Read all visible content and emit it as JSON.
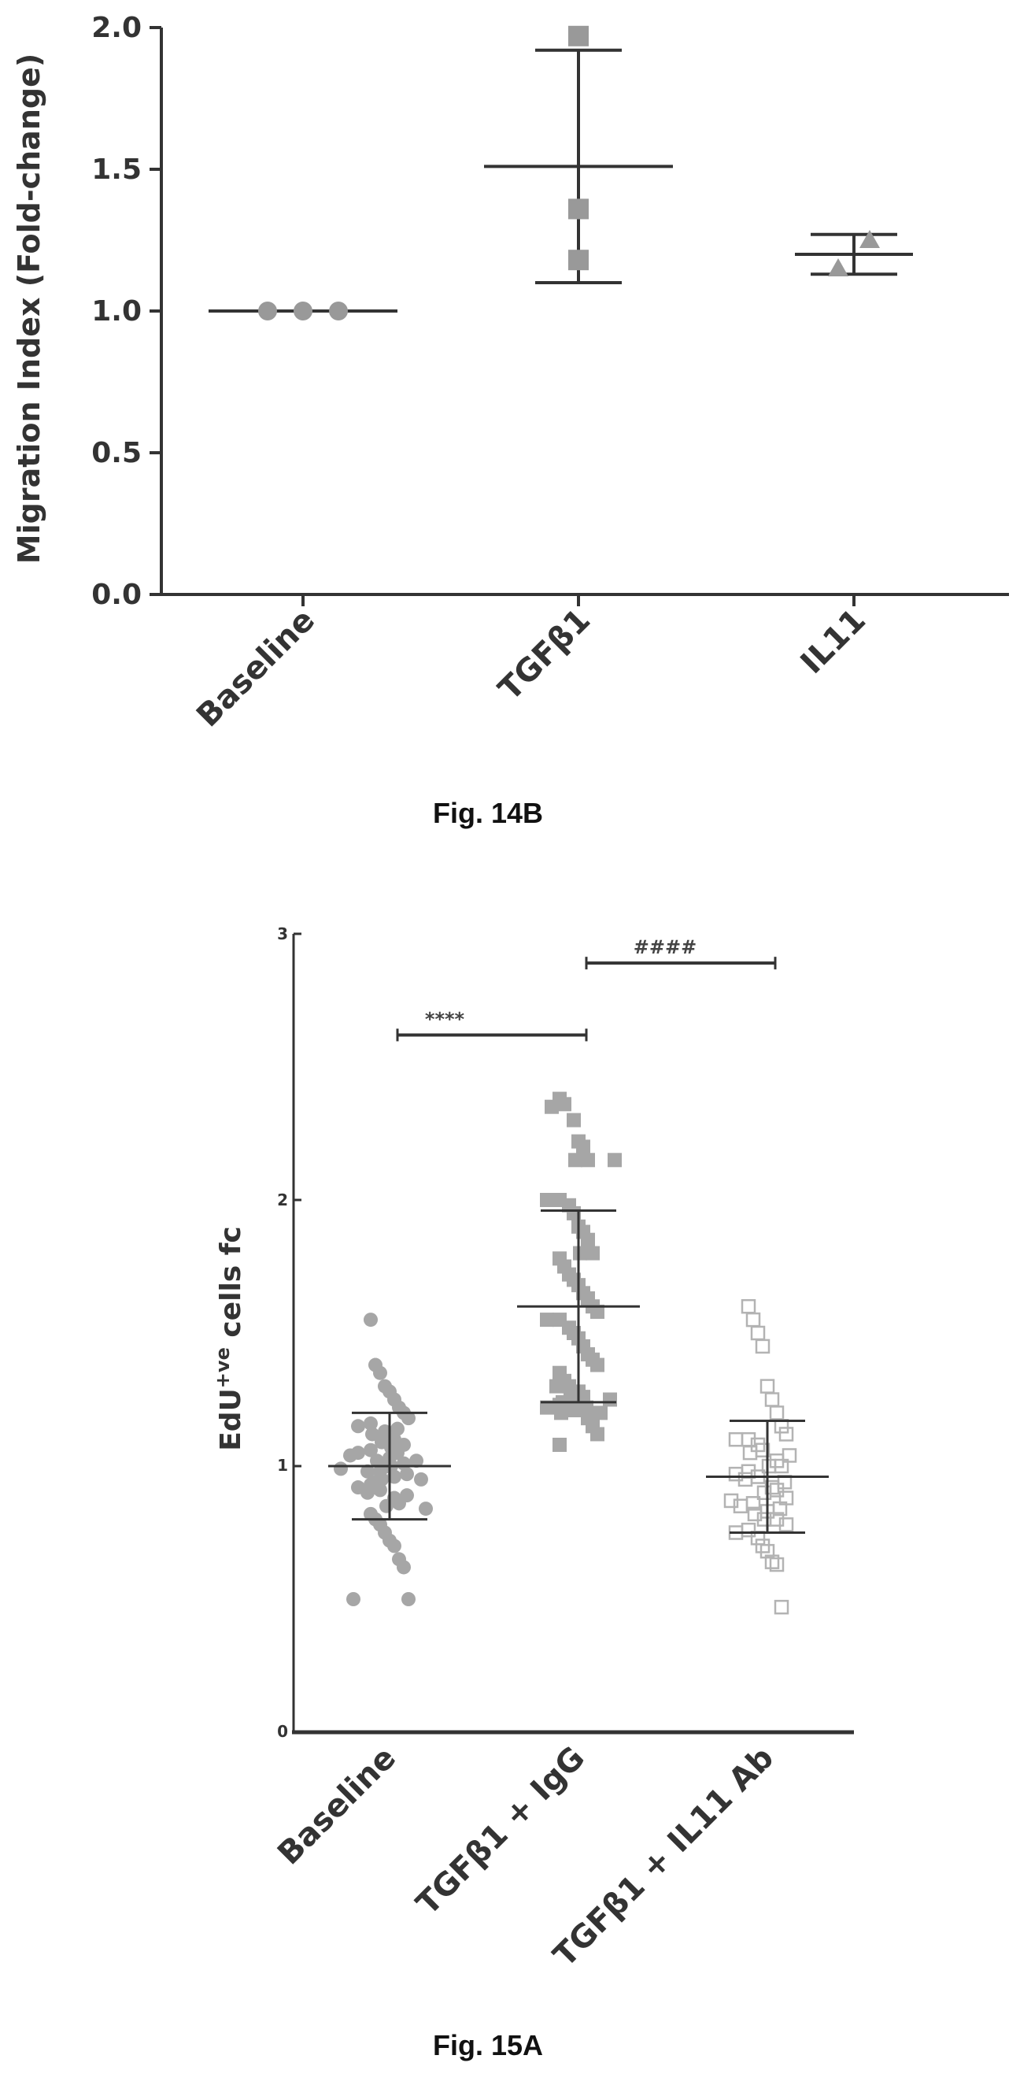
{
  "chart_data": [
    {
      "type": "scatter",
      "figure_label": "Fig. 14B",
      "ylabel": "Migration Index (Fold-change)",
      "ylim": [
        0,
        2.0
      ],
      "yticks": [
        "0.0",
        "0.5",
        "1.0",
        "1.5",
        "2.0"
      ],
      "categories": [
        "Baseline",
        "TGFβ1",
        "IL11"
      ],
      "series": [
        {
          "category": "Baseline",
          "marker": "circle",
          "values": [
            1.0,
            1.0,
            1.0
          ],
          "mean": 1.0,
          "err_low": 1.0,
          "err_high": 1.0
        },
        {
          "category": "TGFβ1",
          "marker": "square",
          "values": [
            1.97,
            1.36,
            1.18
          ],
          "mean": 1.51,
          "err_low": 1.1,
          "err_high": 1.92
        },
        {
          "category": "IL11",
          "marker": "triangle",
          "values": [
            1.15,
            1.25
          ],
          "mean": 1.2,
          "err_low": 1.13,
          "err_high": 1.27
        }
      ]
    },
    {
      "type": "scatter",
      "figure_label": "Fig. 15A",
      "ylabel": "EdU",
      "ylabel_sup": "+ve",
      "ylabel_rest": " cells fc",
      "ylim": [
        0,
        3
      ],
      "yticks": [
        "0",
        "1",
        "2",
        "3"
      ],
      "categories": [
        "Baseline",
        "TGFβ1 + IgG",
        "TGFβ1 + IL11 Ab"
      ],
      "significance": [
        {
          "label": "****",
          "from": 0,
          "to": 1,
          "y": 2.62
        },
        {
          "label": "####",
          "from": 1,
          "to": 2,
          "y": 2.89
        }
      ],
      "series": [
        {
          "category": "Baseline",
          "marker": "circle",
          "mean": 1.0,
          "err_low": 0.8,
          "err_high": 1.2,
          "values": [
            1.55,
            1.38,
            1.35,
            1.3,
            1.28,
            1.25,
            1.22,
            1.2,
            1.18,
            1.16,
            1.15,
            1.14,
            1.13,
            1.12,
            1.1,
            1.09,
            1.08,
            1.07,
            1.06,
            1.05,
            1.05,
            1.04,
            1.03,
            1.02,
            1.02,
            1.01,
            1.0,
            1.0,
            0.99,
            0.98,
            0.98,
            0.97,
            0.96,
            0.95,
            0.95,
            0.94,
            0.93,
            0.92,
            0.91,
            0.9,
            0.89,
            0.88,
            0.86,
            0.85,
            0.84,
            0.82,
            0.8,
            0.78,
            0.75,
            0.72,
            0.7,
            0.65,
            0.62,
            0.5,
            0.5
          ]
        },
        {
          "category": "TGFβ1 + IgG",
          "marker": "square",
          "mean": 1.6,
          "err_low": 1.24,
          "err_high": 1.96,
          "values": [
            2.38,
            2.36,
            2.35,
            2.3,
            2.22,
            2.2,
            2.15,
            2.15,
            2.15,
            2.0,
            2.0,
            1.98,
            1.95,
            1.9,
            1.88,
            1.85,
            1.8,
            1.8,
            1.78,
            1.75,
            1.72,
            1.7,
            1.68,
            1.65,
            1.63,
            1.6,
            1.58,
            1.55,
            1.55,
            1.52,
            1.5,
            1.48,
            1.45,
            1.42,
            1.4,
            1.38,
            1.35,
            1.32,
            1.3,
            1.3,
            1.28,
            1.26,
            1.25,
            1.25,
            1.24,
            1.23,
            1.22,
            1.22,
            1.21,
            1.2,
            1.2,
            1.18,
            1.15,
            1.12,
            1.08
          ]
        },
        {
          "category": "TGFβ1 + IL11 Ab",
          "marker": "open-square",
          "mean": 0.96,
          "err_low": 0.75,
          "err_high": 1.17,
          "values": [
            1.6,
            1.55,
            1.5,
            1.45,
            1.3,
            1.25,
            1.2,
            1.15,
            1.12,
            1.1,
            1.1,
            1.08,
            1.06,
            1.05,
            1.04,
            1.02,
            1.0,
            1.0,
            0.98,
            0.97,
            0.96,
            0.95,
            0.94,
            0.92,
            0.91,
            0.9,
            0.88,
            0.87,
            0.86,
            0.85,
            0.84,
            0.83,
            0.82,
            0.8,
            0.8,
            0.78,
            0.76,
            0.75,
            0.73,
            0.7,
            0.68,
            0.64,
            0.63,
            0.47
          ]
        }
      ]
    }
  ]
}
